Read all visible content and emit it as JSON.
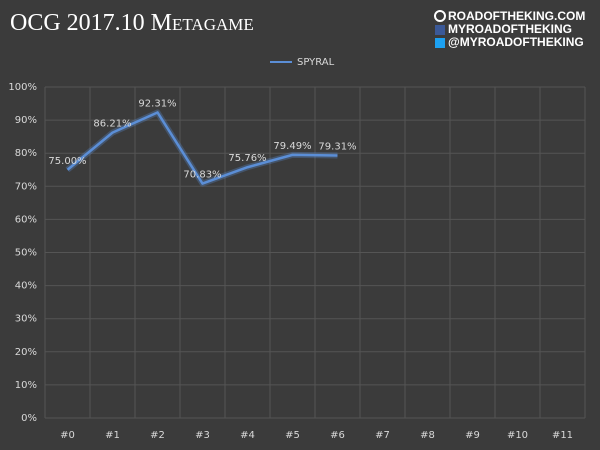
{
  "chart_data": {
    "type": "line",
    "title": "OCG 2017.10 Metagame",
    "annotations": [
      "ROADOFTHEKING.COM",
      "MYROADOFTHEKING",
      "@MYROADOFTHEKING"
    ],
    "categories": [
      "#0",
      "#1",
      "#2",
      "#3",
      "#4",
      "#5",
      "#6",
      "#7",
      "#8",
      "#9",
      "#10",
      "#11"
    ],
    "series": [
      {
        "name": "SPYRAL",
        "color": "#5b8ed6",
        "values": [
          75.0,
          86.21,
          92.31,
          70.83,
          75.76,
          79.49,
          79.31,
          null,
          null,
          null,
          null,
          null
        ],
        "value_labels": [
          "75.00%",
          "86.21%",
          "92.31%",
          "70.83%",
          "75.76%",
          "79.49%",
          "79.31%",
          null,
          null,
          null,
          null,
          null
        ]
      }
    ],
    "ylim": [
      0,
      100
    ],
    "yticks": [
      {
        "value": 0,
        "label": "0%"
      },
      {
        "value": 10,
        "label": "10%"
      },
      {
        "value": 20,
        "label": "20%"
      },
      {
        "value": 30,
        "label": "30%"
      },
      {
        "value": 40,
        "label": "40%"
      },
      {
        "value": 50,
        "label": "50%"
      },
      {
        "value": 60,
        "label": "60%"
      },
      {
        "value": 70,
        "label": "70%"
      },
      {
        "value": 80,
        "label": "80%"
      },
      {
        "value": 90,
        "label": "90%"
      },
      {
        "value": 100,
        "label": "100%"
      }
    ],
    "grid": true,
    "legend": "top"
  }
}
